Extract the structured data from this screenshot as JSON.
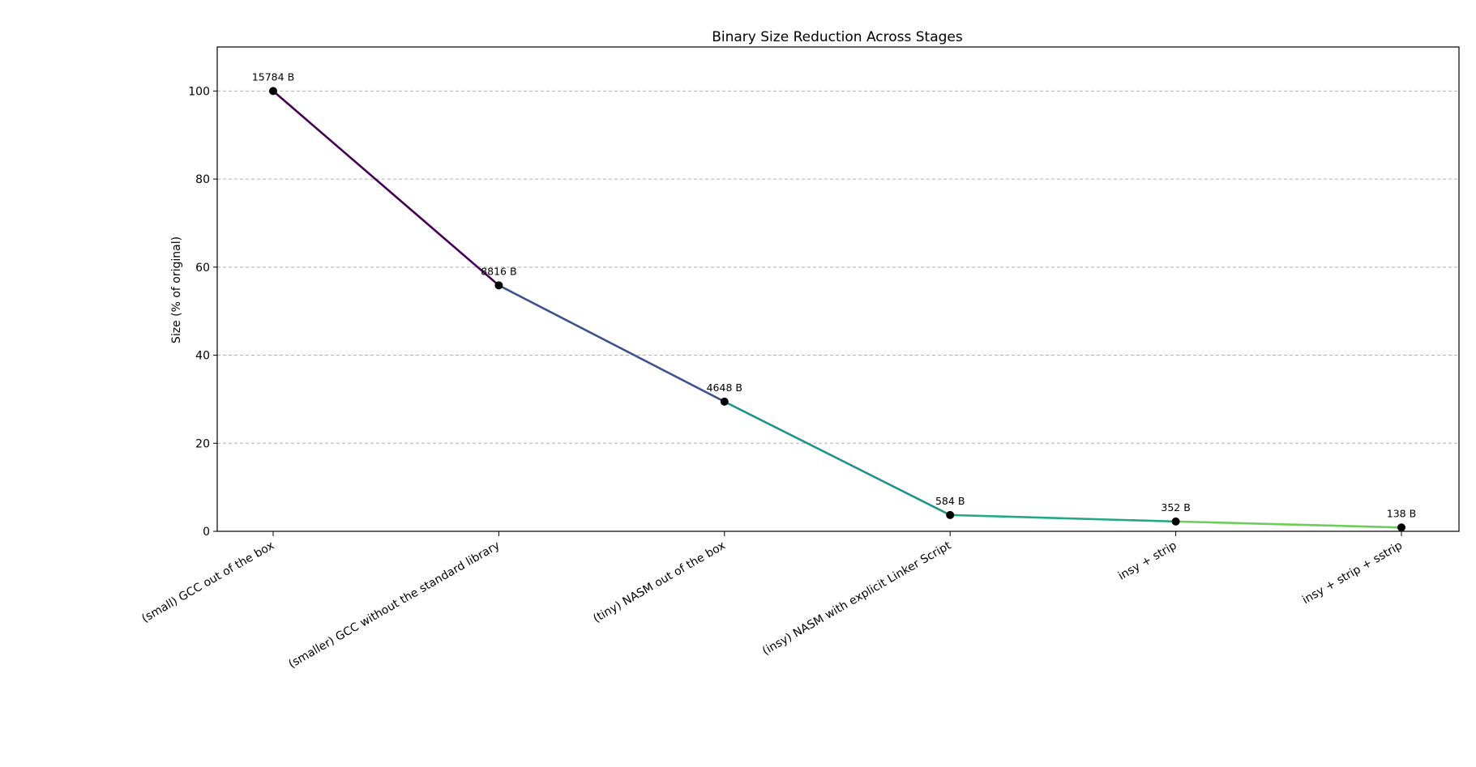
{
  "chart_data": {
    "type": "line",
    "title": "Binary Size Reduction Across Stages",
    "xlabel": "",
    "ylabel": "Size (% of original)",
    "ylim": [
      0,
      110
    ],
    "yticks": [
      0,
      20,
      40,
      60,
      80,
      100
    ],
    "grid": "y-dashed",
    "categories": [
      "(small) GCC out of the box",
      "(smaller) GCC without the standard library",
      "(tiny) NASM out of the box",
      "(insy) NASM with explicit Linker Script",
      "insy + strip",
      "insy + strip + sstrip"
    ],
    "values": [
      100,
      55.86,
      29.45,
      3.7,
      2.23,
      0.87
    ],
    "point_labels": [
      "15784 B",
      "8816 B",
      "4648 B",
      "584 B",
      "352 B",
      "138 B"
    ],
    "segment_colors": [
      "#440154",
      "#3b528b",
      "#21918c",
      "#21a884",
      "#6ccd5a"
    ],
    "marker_color": "#000000"
  }
}
